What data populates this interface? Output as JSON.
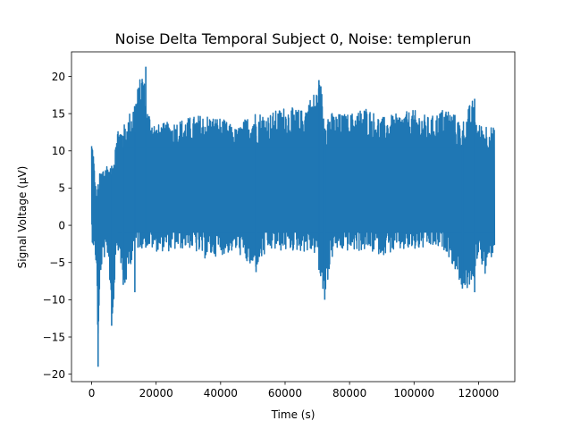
{
  "chart_data": {
    "type": "line",
    "title": "Noise Delta Temporal Subject 0, Noise: templerun",
    "xlabel": "Time (s)",
    "ylabel": "Signal Voltage (μV)",
    "xlim": [
      -6250,
      131250
    ],
    "ylim": [
      -21,
      23.3
    ],
    "xticks": [
      0,
      20000,
      40000,
      60000,
      80000,
      100000,
      120000
    ],
    "xtick_labels": [
      "0",
      "20000",
      "40000",
      "60000",
      "80000",
      "100000",
      "120000"
    ],
    "yticks": [
      -20,
      -15,
      -10,
      -5,
      0,
      5,
      10,
      15,
      20
    ],
    "ytick_labels": [
      "−20",
      "−15",
      "−10",
      "−5",
      "0",
      "5",
      "10",
      "15",
      "20"
    ],
    "grid": false,
    "series": [
      {
        "color": "#1f77b4",
        "envelope": {
          "x": [
            0,
            500,
            1000,
            1500,
            2000,
            2500,
            3500,
            5000,
            6500,
            7500,
            8500,
            10000,
            13000,
            16000,
            17000,
            20000,
            25000,
            30000,
            35000,
            40000,
            45000,
            50000,
            55000,
            60000,
            65000,
            70000,
            71000,
            72000,
            75000,
            80000,
            85000,
            90000,
            95000,
            100000,
            105000,
            110000,
            115000,
            118000,
            120000,
            122000,
            125000
          ],
          "max": [
            11.7,
            10.5,
            6.5,
            4.5,
            5.5,
            7.0,
            8.0,
            8.5,
            7.5,
            13.0,
            13.5,
            13.5,
            16.5,
            21.3,
            16.0,
            13.5,
            14.0,
            14.5,
            15.0,
            14.5,
            13.0,
            15.5,
            15.0,
            16.0,
            15.5,
            18.5,
            19.5,
            16.0,
            15.0,
            15.0,
            16.0,
            14.5,
            15.0,
            15.5,
            14.5,
            16.0,
            14.0,
            17.0,
            13.5,
            14.0,
            13.0
          ],
          "min": [
            -2.0,
            -3.0,
            -4.0,
            -6.0,
            -19.0,
            -7.0,
            -4.5,
            -4.0,
            -13.5,
            -3.0,
            -3.5,
            -9.0,
            -3.5,
            -3.0,
            -3.0,
            -3.5,
            -3.5,
            -3.0,
            -4.5,
            -4.0,
            -3.5,
            -6.3,
            -3.5,
            -3.5,
            -3.5,
            -4.0,
            -8.0,
            -10.0,
            -3.5,
            -3.5,
            -3.5,
            -4.0,
            -3.5,
            -3.5,
            -3.0,
            -3.5,
            -8.5,
            -9.0,
            -3.5,
            -7.0,
            -3.0
          ]
        },
        "spikes": [
          {
            "x": 2000,
            "min": -19.0,
            "max": 5.5
          },
          {
            "x": 6200,
            "min": -13.5,
            "max": 8.0
          },
          {
            "x": 9800,
            "min": -8.0,
            "max": 12.0
          },
          {
            "x": 13400,
            "min": -9.0,
            "max": 12.5
          },
          {
            "x": 16800,
            "min": -3.0,
            "max": 21.3
          },
          {
            "x": 51000,
            "min": -6.3,
            "max": 12.0
          },
          {
            "x": 70500,
            "min": -6.0,
            "max": 19.5
          },
          {
            "x": 72300,
            "min": -10.0,
            "max": 13.0
          },
          {
            "x": 115000,
            "min": -8.5,
            "max": 12.0
          },
          {
            "x": 118800,
            "min": -9.0,
            "max": 17.0
          }
        ]
      }
    ]
  }
}
